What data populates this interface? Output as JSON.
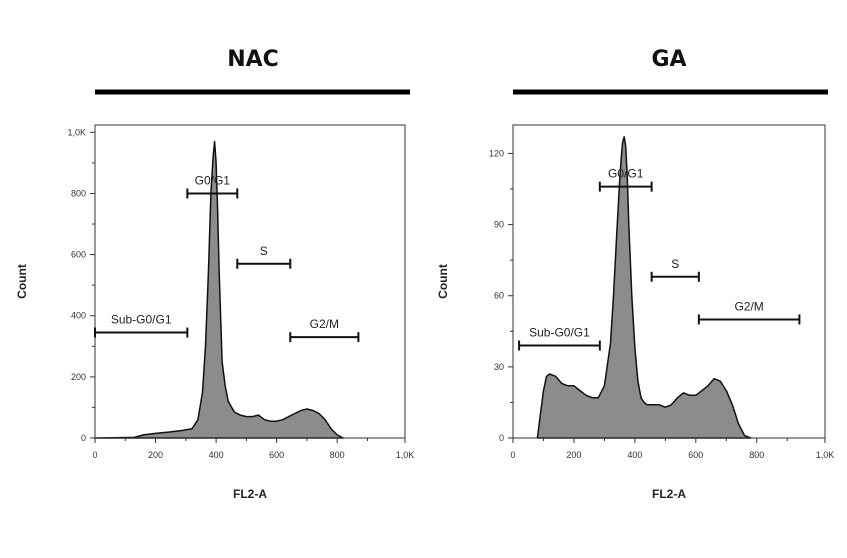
{
  "caption_fragment": "",
  "chart_data": [
    {
      "type": "area",
      "title": "NAC",
      "xlabel": "FL2-A",
      "ylabel": "Count",
      "xlim": [
        0,
        1024
      ],
      "ylim": [
        0,
        1024
      ],
      "x_ticks": [
        0,
        200,
        400,
        600,
        800,
        1024
      ],
      "x_tick_labels": [
        "0",
        "200",
        "400",
        "600",
        "800",
        "1,0K"
      ],
      "y_ticks": [
        0,
        200,
        400,
        600,
        800,
        1000
      ],
      "y_tick_labels": [
        "0",
        "200",
        "400",
        "600",
        "800",
        "1,0K"
      ],
      "fill_color": "#8c8c8c",
      "x": [
        0,
        130,
        160,
        200,
        250,
        290,
        320,
        340,
        355,
        365,
        375,
        383,
        390,
        395,
        400,
        405,
        410,
        415,
        420,
        430,
        440,
        460,
        480,
        500,
        520,
        540,
        560,
        580,
        600,
        620,
        640,
        660,
        680,
        700,
        720,
        740,
        760,
        780,
        800,
        820
      ],
      "y": [
        0,
        2,
        10,
        15,
        20,
        25,
        30,
        60,
        150,
        300,
        550,
        800,
        920,
        970,
        900,
        750,
        550,
        400,
        250,
        170,
        120,
        85,
        75,
        70,
        70,
        75,
        60,
        55,
        55,
        60,
        70,
        80,
        90,
        95,
        90,
        80,
        60,
        30,
        10,
        0
      ],
      "gates": [
        {
          "label": "Sub-G0/G1",
          "x_start": 0,
          "x_end": 305,
          "y": 345
        },
        {
          "label": "G0/G1",
          "x_start": 305,
          "x_end": 470,
          "y": 800
        },
        {
          "label": "S",
          "x_start": 470,
          "x_end": 645,
          "y": 570
        },
        {
          "label": "G2/M",
          "x_start": 645,
          "x_end": 870,
          "y": 330
        }
      ]
    },
    {
      "type": "area",
      "title": "GA",
      "xlabel": "FL2-A",
      "ylabel": "Count",
      "xlim": [
        0,
        1024
      ],
      "ylim": [
        0,
        132
      ],
      "x_ticks": [
        0,
        200,
        400,
        600,
        800,
        1024
      ],
      "x_tick_labels": [
        "0",
        "200",
        "400",
        "600",
        "800",
        "1,0K"
      ],
      "y_ticks": [
        0,
        30,
        60,
        90,
        120
      ],
      "y_tick_labels": [
        "0",
        "30",
        "60",
        "90",
        "120"
      ],
      "fill_color": "#8c8c8c",
      "x": [
        80,
        90,
        100,
        110,
        120,
        140,
        160,
        180,
        200,
        220,
        240,
        260,
        280,
        300,
        320,
        330,
        340,
        350,
        355,
        360,
        365,
        370,
        375,
        380,
        390,
        400,
        410,
        420,
        430,
        440,
        460,
        480,
        500,
        520,
        540,
        560,
        580,
        600,
        620,
        640,
        660,
        680,
        700,
        720,
        740,
        760,
        780
      ],
      "y": [
        0,
        10,
        20,
        26,
        27,
        26,
        23,
        22,
        22,
        20,
        18,
        17,
        17,
        22,
        40,
        60,
        85,
        108,
        118,
        125,
        127,
        123,
        110,
        90,
        60,
        38,
        24,
        17,
        15,
        14,
        14,
        14,
        13,
        14,
        17,
        19,
        18,
        18,
        20,
        22,
        25,
        24,
        20,
        14,
        6,
        1,
        0
      ],
      "gates": [
        {
          "label": "Sub-G0/G1",
          "x_start": 20,
          "x_end": 285,
          "y": 39
        },
        {
          "label": "G0/G1",
          "x_start": 285,
          "x_end": 455,
          "y": 106
        },
        {
          "label": "S",
          "x_start": 455,
          "x_end": 610,
          "y": 68
        },
        {
          "label": "G2/M",
          "x_start": 610,
          "x_end": 940,
          "y": 50
        }
      ]
    }
  ]
}
